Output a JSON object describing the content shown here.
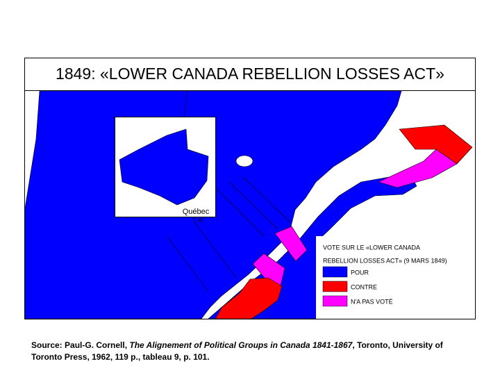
{
  "title": "1849: «LOWER CANADA REBELLION LOSSES ACT»",
  "map": {
    "labels": [
      "Québec",
      "T.-R."
    ]
  },
  "legend": {
    "title_lines": [
      "VOTE SUR LE «LOWER CANADA",
      "REBELLION LOSSES ACT» (9 MARS 1849)"
    ],
    "items": [
      {
        "label": "POUR",
        "color": "#0000ff"
      },
      {
        "label": "CONTRE",
        "color": "#ff0000"
      },
      {
        "label": "N'A PAS VOTÉ",
        "color": "#ff00ff"
      }
    ]
  },
  "source": {
    "parts": [
      "Source: Paul-G. Cornell, ",
      "The Alignement of Political Groups in Canada 1841-1867",
      ", Toronto, University of Toronto Press, 1962, 119 p., tableau 9, p. 101."
    ]
  }
}
